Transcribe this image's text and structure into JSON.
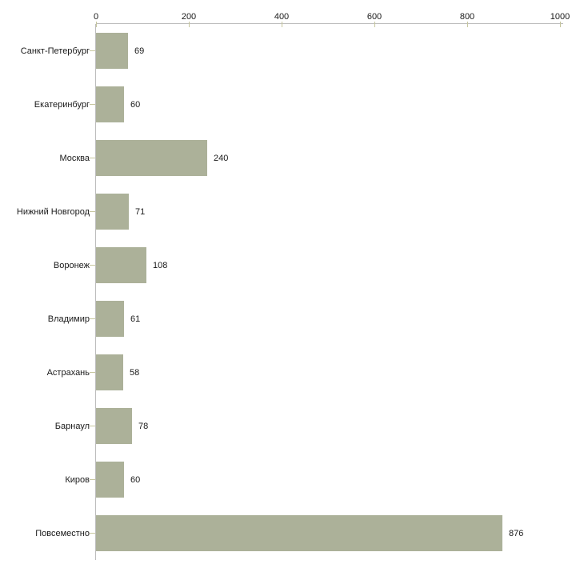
{
  "chart_data": {
    "type": "bar",
    "orientation": "horizontal",
    "title": "",
    "xlabel": "",
    "ylabel": "",
    "categories": [
      "Санкт-Петербург",
      "Екатеринбург",
      "Москва",
      "Нижний Новгород",
      "Воронеж",
      "Владимир",
      "Астрахань",
      "Барнаул",
      "Киров",
      "Повсеместно"
    ],
    "values": [
      69,
      60,
      240,
      71,
      108,
      61,
      58,
      78,
      60,
      876
    ],
    "value_labels": [
      "69",
      "60",
      "240",
      "71",
      "108",
      "61",
      "58",
      "78",
      "60",
      "876"
    ],
    "xlim": [
      0,
      1000
    ],
    "x_ticks": [
      0,
      200,
      400,
      600,
      800,
      1000
    ],
    "x_tick_labels": [
      "0",
      "200",
      "400",
      "600",
      "800",
      "1000"
    ],
    "x_axis_position": "top",
    "grid": false,
    "legend": false,
    "colors": {
      "bar_fill": "#acb199",
      "axis_line": "#bdbdbd",
      "tick_mark": "#c6c69e",
      "text": "#1a1a1a",
      "background": "#ffffff"
    }
  }
}
